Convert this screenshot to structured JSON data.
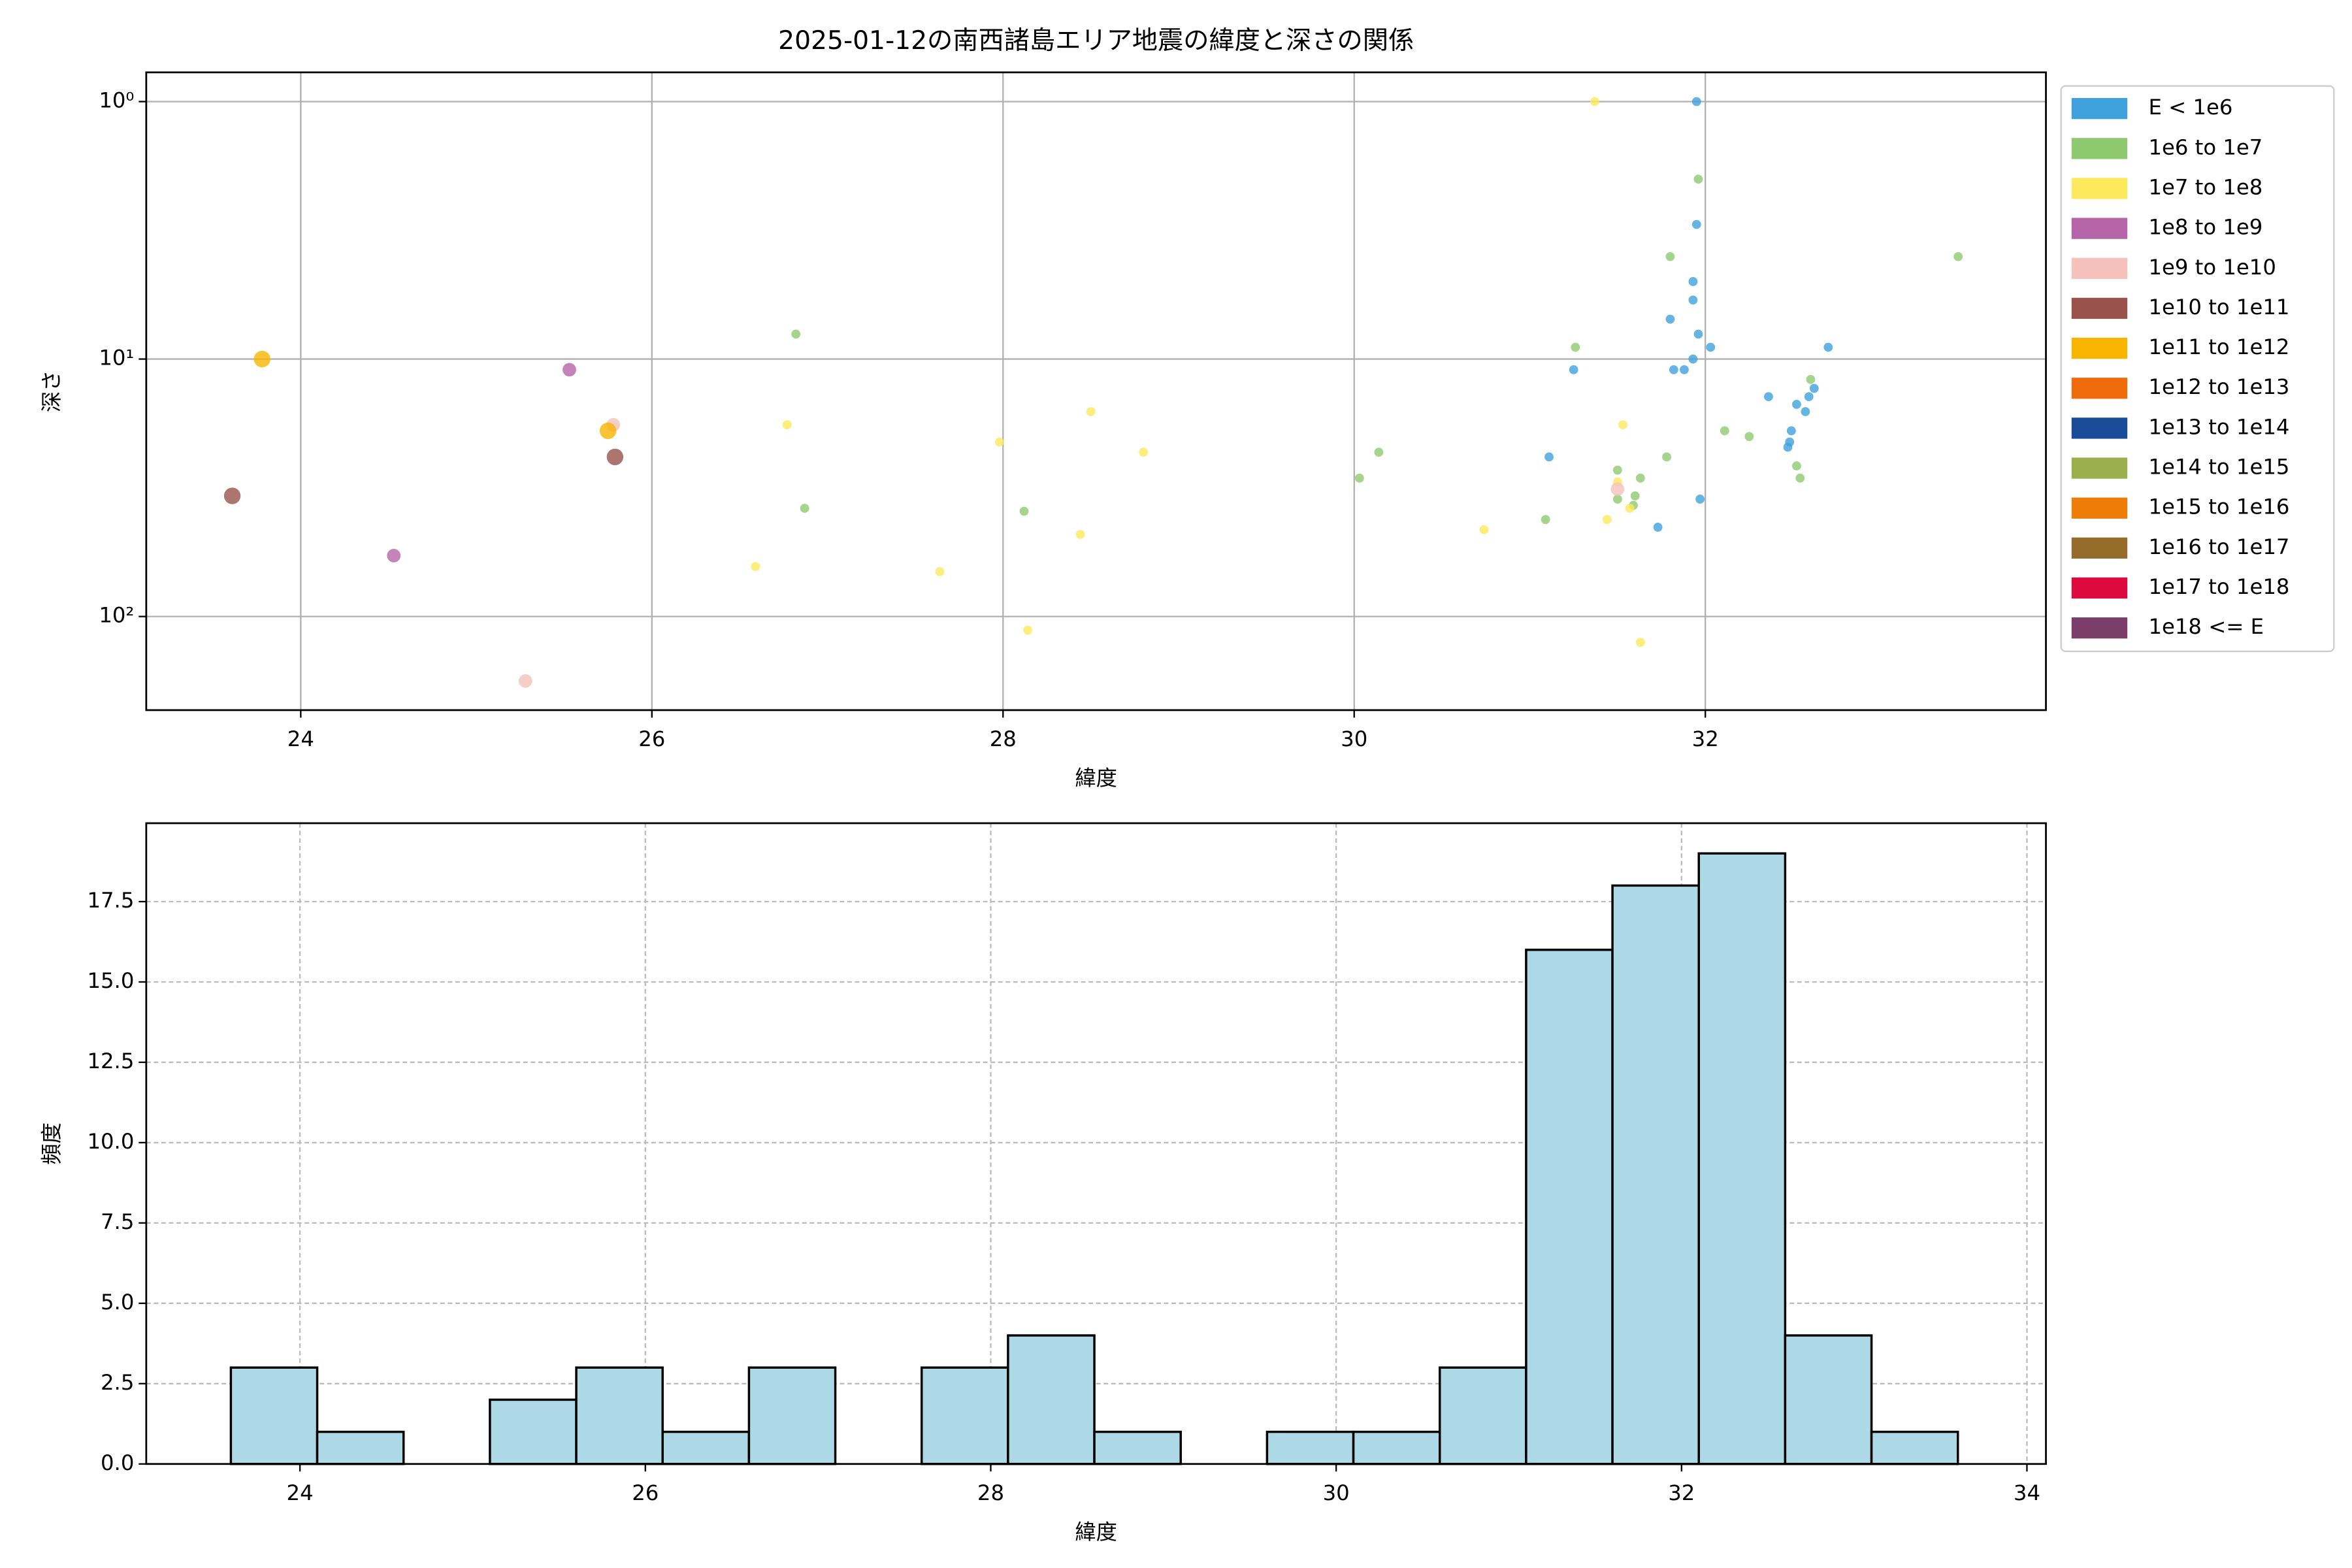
{
  "chart_data": [
    {
      "type": "scatter",
      "title": "2025-01-12の南西諸島エリア地震の緯度と深さの関係",
      "x_label": "緯度",
      "y_label": "深さ",
      "xlim": [
        23.12,
        33.94
      ],
      "xticks": [
        24,
        26,
        28,
        30,
        32
      ],
      "ylim": [
        0.77,
        231
      ],
      "y_scale": "log",
      "y_inverted": true,
      "yticks": [
        {
          "value": 1,
          "label": "10⁰"
        },
        {
          "value": 10,
          "label": "10¹"
        },
        {
          "value": 100,
          "label": "10²"
        }
      ],
      "grid": true,
      "legend": "outside-right",
      "series": [
        {
          "name": "E < 1e6",
          "color": "#3ea1dc",
          "x": [
            31.95,
            31.95,
            31.93,
            31.93,
            31.8,
            31.96,
            32.03,
            31.93,
            31.25,
            31.82,
            31.88,
            32.7,
            32.36,
            32.52,
            32.59,
            32.62,
            32.57,
            32.49,
            32.48,
            32.47,
            31.11,
            31.97,
            31.73
          ],
          "values": [
            1,
            3,
            5,
            5.9,
            7,
            8,
            9,
            10,
            11,
            11,
            11,
            9,
            14,
            15,
            14,
            13,
            16,
            19,
            21,
            22,
            24,
            35,
            45
          ]
        },
        {
          "name": "1e6 to 1e7",
          "color": "#8fc96f",
          "x": [
            31.96,
            31.8,
            33.44,
            31.26,
            26.82,
            32.6,
            32.11,
            32.25,
            30.14,
            31.5,
            31.78,
            32.52,
            32.54,
            31.63,
            30.03,
            31.6,
            31.5,
            31.59,
            26.87,
            28.12,
            31.09
          ],
          "values": [
            2,
            4,
            4,
            9,
            8,
            12,
            19,
            20,
            23,
            27,
            24,
            26,
            29,
            29,
            29,
            34,
            35,
            37,
            38,
            39,
            42
          ]
        },
        {
          "name": "1e7 to 1e8",
          "color": "#fde95d",
          "x": [
            31.37,
            28.5,
            26.77,
            31.53,
            27.98,
            28.8,
            31.5,
            31.44,
            31.57,
            30.74,
            28.44,
            26.59,
            27.64,
            28.14,
            31.63
          ],
          "values": [
            1,
            16,
            18,
            18,
            21,
            23,
            30,
            42,
            38,
            46,
            48,
            64,
            67,
            113,
            126
          ]
        },
        {
          "name": "1e8 to 1e9",
          "color": "#b565a7",
          "x": [
            25.53,
            24.53
          ],
          "values": [
            11,
            58
          ]
        },
        {
          "name": "1e9 to 1e10",
          "color": "#f4c2bb",
          "x": [
            25.78,
            31.5,
            25.28
          ],
          "values": [
            18,
            32,
            178
          ]
        },
        {
          "name": "1e10 to 1e11",
          "color": "#98524b",
          "x": [
            23.61,
            25.79
          ],
          "values": [
            34,
            24
          ]
        },
        {
          "name": "1e11 to 1e12",
          "color": "#f7b500",
          "x": [
            23.78,
            25.75
          ],
          "values": [
            10,
            19
          ]
        },
        {
          "name": "1e12 to 1e13",
          "color": "#ef6a0a",
          "x": [],
          "values": []
        },
        {
          "name": "1e13 to 1e14",
          "color": "#1a4b96",
          "x": [],
          "values": []
        },
        {
          "name": "1e14 to 1e15",
          "color": "#9caf4c",
          "x": [],
          "values": []
        },
        {
          "name": "1e15 to 1e16",
          "color": "#ee7d07",
          "x": [],
          "values": []
        },
        {
          "name": "1e16 to 1e17",
          "color": "#956c2a",
          "x": [],
          "values": []
        },
        {
          "name": "1e17 to 1e18",
          "color": "#dc0a3e",
          "x": [],
          "values": []
        },
        {
          "name": "1e18 <= E",
          "color": "#7b3e6b",
          "x": [],
          "values": []
        }
      ]
    },
    {
      "type": "histogram",
      "x_label": "緯度",
      "y_label": "頻度",
      "color": "#add8e6",
      "bins": [
        23.6,
        24.1,
        24.6,
        25.1,
        25.6,
        26.1,
        26.6,
        27.1,
        27.6,
        28.1,
        28.6,
        29.1,
        29.6,
        30.1,
        30.6,
        31.1,
        31.6,
        32.1,
        32.6,
        33.1,
        33.6
      ],
      "values": [
        3,
        1,
        0,
        2,
        3,
        1,
        3,
        0,
        3,
        4,
        1,
        0,
        1,
        1,
        3,
        16,
        18,
        19,
        4,
        1
      ],
      "xlim": [
        23.11,
        34.11
      ],
      "xticks": [
        24,
        26,
        28,
        30,
        32,
        34
      ],
      "ylim": [
        0,
        19.94
      ],
      "yticks": [
        {
          "value": 0,
          "label": "0.0"
        },
        2.5,
        {
          "value": 5,
          "label": "5.0"
        },
        7.5,
        {
          "value": 10,
          "label": "10.0"
        },
        12.5,
        {
          "value": 15,
          "label": "15.0"
        },
        17.5
      ],
      "grid": true
    }
  ]
}
